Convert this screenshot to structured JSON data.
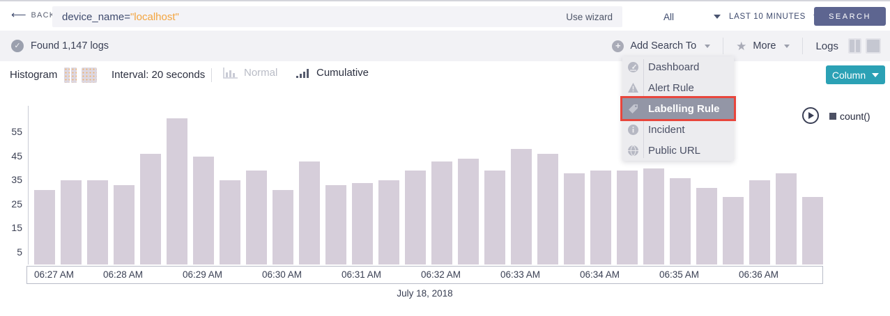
{
  "topbar": {
    "back_label": "BACK",
    "query_field": "device_name=",
    "query_value": "\"localhost\"",
    "use_wizard_label": "Use wizard",
    "scope_value": "All",
    "time_range_value": "LAST 10 MINUTES",
    "search_label": "SEARCH"
  },
  "toolbar": {
    "status_text": "Found 1,147 logs",
    "add_search_to_label": "Add Search To",
    "more_label": "More",
    "logs_label": "Logs"
  },
  "add_search_menu": {
    "items": [
      {
        "label": "Dashboard",
        "icon": "gauge-icon",
        "highlighted": false
      },
      {
        "label": "Alert Rule",
        "icon": "alert-triangle-icon",
        "highlighted": false
      },
      {
        "label": "Labelling Rule",
        "icon": "tag-icon",
        "highlighted": true
      },
      {
        "label": "Incident",
        "icon": "info-icon",
        "highlighted": false
      },
      {
        "label": "Public URL",
        "icon": "globe-icon",
        "highlighted": false
      }
    ]
  },
  "histogram_bar": {
    "title": "Histogram",
    "interval_label": "Interval: 20 seconds",
    "normal_label": "Normal",
    "cumulative_label": "Cumulative",
    "column_button_label": "Column"
  },
  "chart_data": {
    "type": "bar",
    "series_name": "count()",
    "interval_seconds": 20,
    "x_tick_labels": [
      "06:27 AM",
      "06:28 AM",
      "06:29 AM",
      "06:30 AM",
      "06:31 AM",
      "06:32 AM",
      "06:33 AM",
      "06:34 AM",
      "06:35 AM",
      "06:36 AM"
    ],
    "values": [
      31,
      35,
      35,
      33,
      46,
      61,
      45,
      35,
      39,
      31,
      43,
      33,
      34,
      35,
      39,
      43,
      44,
      39,
      48,
      46,
      38,
      39,
      39,
      40,
      36,
      32,
      28,
      35,
      38,
      28
    ],
    "y_ticks": [
      5,
      15,
      25,
      35,
      45,
      55
    ],
    "ylim": [
      0,
      66
    ],
    "grid": false,
    "legend_position": "top-right",
    "date_label": "July 18, 2018",
    "bar_color": "#d6ceda"
  },
  "colors": {
    "accent_teal": "#2ba1b5",
    "search_button_blue": "#5d6590",
    "query_value_orange": "#f3a43e",
    "highlight_red": "#e8463c",
    "bar_fill": "#d6ceda",
    "toolbar_bg": "#f2f2f5",
    "menu_highlight_bg": "#9396a6"
  }
}
